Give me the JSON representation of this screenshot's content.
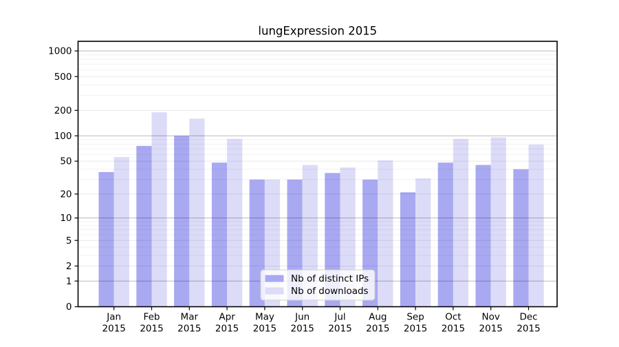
{
  "chart_data": {
    "type": "bar",
    "title": "lungExpression 2015",
    "categories": [
      "Jan",
      "Feb",
      "Mar",
      "Apr",
      "May",
      "Jun",
      "Jul",
      "Aug",
      "Sep",
      "Oct",
      "Nov",
      "Dec"
    ],
    "category_year": "2015",
    "series": [
      {
        "name": "Nb of distinct IPs",
        "color": "#a9a9f2",
        "values": [
          37,
          76,
          100,
          48,
          30,
          30,
          36,
          30,
          21,
          48,
          45,
          40
        ]
      },
      {
        "name": "Nb of downloads",
        "color": "#dcdcf8",
        "values": [
          56,
          190,
          160,
          92,
          30,
          45,
          42,
          51,
          31,
          92,
          96,
          79
        ]
      }
    ],
    "y_axis": {
      "scale": "log10(1+y)",
      "tick_labels": [
        0,
        1,
        2,
        5,
        10,
        20,
        50,
        100,
        200,
        500,
        1000
      ],
      "decade_ticks": [
        1,
        10,
        100,
        1000
      ],
      "minor_ticks": [
        3,
        4,
        6,
        7,
        8,
        9,
        30,
        40,
        60,
        70,
        80,
        90,
        300,
        400,
        600,
        700,
        800,
        900
      ],
      "max": 1000
    },
    "legend": {
      "position": "bottom-center-inside"
    },
    "grid": true,
    "colors": {
      "axis": "#000000",
      "grid_decade": "rgba(0,0,0,0.28)",
      "grid_labeled": "rgba(0,0,0,0.09)",
      "grid_minor": "rgba(0,0,0,0.055)",
      "legend_border": "#cfcfcf",
      "legend_background": "rgba(255,255,255,0.8)",
      "background": "#ffffff"
    }
  }
}
